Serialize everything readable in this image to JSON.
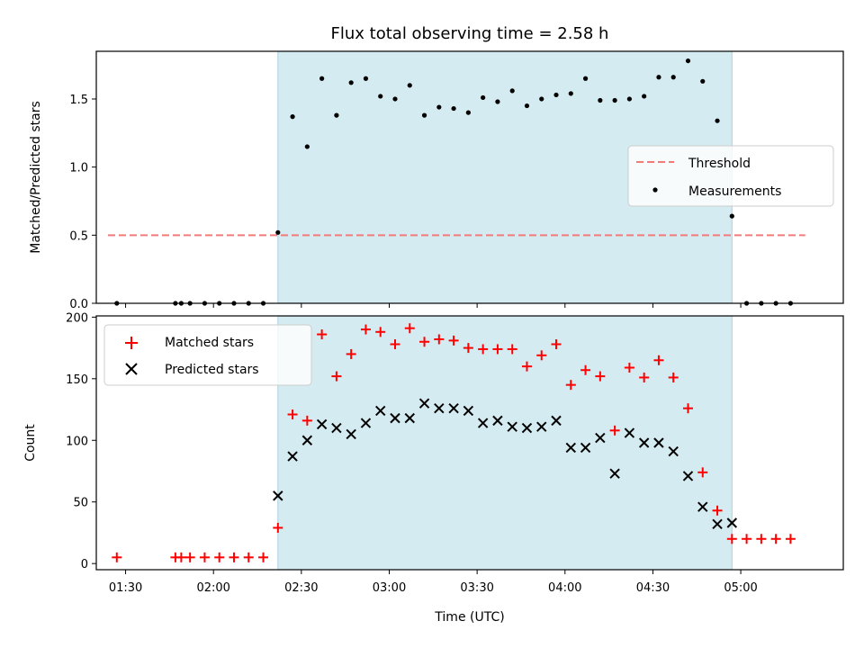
{
  "chart_data": [
    {
      "type": "scatter",
      "title": "Flux total observing time = 2.58 h",
      "ylabel": "Matched/Predicted stars",
      "xlabel": "",
      "ylim": [
        0,
        1.85
      ],
      "xlim": [
        "01:20",
        "05:35"
      ],
      "yticks": [
        0.0,
        0.5,
        1.0,
        1.5
      ],
      "ytick_labels": [
        "0.0",
        "0.5",
        "1.0",
        "1.5"
      ],
      "shaded_interval": [
        "02:22",
        "04:57"
      ],
      "shade_color": "#d4ebf1",
      "grid": false,
      "legend_position": "center-right",
      "threshold": {
        "name": "Threshold",
        "y": 0.5,
        "x_range": [
          "01:24",
          "05:22"
        ],
        "color": "#f47a7a",
        "style": "dashed"
      },
      "series": [
        {
          "name": "Measurements",
          "color": "#000000",
          "marker": "dot",
          "x": [
            "01:27",
            "01:47",
            "01:49",
            "01:52",
            "01:57",
            "02:02",
            "02:07",
            "02:12",
            "02:17",
            "02:22",
            "02:27",
            "02:32",
            "02:37",
            "02:42",
            "02:47",
            "02:52",
            "02:57",
            "03:02",
            "03:07",
            "03:12",
            "03:17",
            "03:22",
            "03:27",
            "03:32",
            "03:37",
            "03:42",
            "03:47",
            "03:52",
            "03:57",
            "04:02",
            "04:07",
            "04:12",
            "04:17",
            "04:22",
            "04:27",
            "04:32",
            "04:37",
            "04:42",
            "04:47",
            "04:52",
            "04:57",
            "05:02",
            "05:07",
            "05:12",
            "05:17"
          ],
          "y": [
            0.0,
            0.0,
            0.0,
            0.0,
            0.0,
            0.0,
            0.0,
            0.0,
            0.0,
            0.52,
            1.37,
            1.15,
            1.65,
            1.38,
            1.62,
            1.65,
            1.52,
            1.5,
            1.6,
            1.38,
            1.44,
            1.43,
            1.4,
            1.51,
            1.48,
            1.56,
            1.45,
            1.5,
            1.53,
            1.54,
            1.65,
            1.49,
            1.49,
            1.5,
            1.52,
            1.66,
            1.66,
            1.78,
            1.63,
            1.34,
            0.64,
            0.0,
            0.0,
            0.0,
            0.0
          ]
        }
      ]
    },
    {
      "type": "scatter",
      "title": "",
      "ylabel": "Count",
      "xlabel": "Time (UTC)",
      "ylim": [
        -5,
        201
      ],
      "xlim": [
        "01:20",
        "05:35"
      ],
      "yticks": [
        0,
        50,
        100,
        150,
        200
      ],
      "ytick_labels": [
        "0",
        "50",
        "100",
        "150",
        "200"
      ],
      "xticks": [
        "01:30",
        "02:00",
        "02:30",
        "03:00",
        "03:30",
        "04:00",
        "04:30",
        "05:00"
      ],
      "shaded_interval": [
        "02:22",
        "04:57"
      ],
      "shade_color": "#d4ebf1",
      "grid": false,
      "legend_position": "top-left",
      "series": [
        {
          "name": "Matched stars",
          "color": "#ff0000",
          "marker": "plus",
          "x": [
            "01:27",
            "01:47",
            "01:49",
            "01:52",
            "01:57",
            "02:02",
            "02:07",
            "02:12",
            "02:17",
            "02:22",
            "02:27",
            "02:32",
            "02:37",
            "02:42",
            "02:47",
            "02:52",
            "02:57",
            "03:02",
            "03:07",
            "03:12",
            "03:17",
            "03:22",
            "03:27",
            "03:32",
            "03:37",
            "03:42",
            "03:47",
            "03:52",
            "03:57",
            "04:02",
            "04:07",
            "04:12",
            "04:17",
            "04:22",
            "04:27",
            "04:32",
            "04:37",
            "04:42",
            "04:47",
            "04:52",
            "04:57",
            "05:02",
            "05:07",
            "05:12",
            "05:17"
          ],
          "y": [
            5,
            5,
            5,
            5,
            5,
            5,
            5,
            5,
            5,
            29,
            121,
            116,
            186,
            152,
            170,
            190,
            188,
            178,
            191,
            180,
            182,
            181,
            175,
            174,
            174,
            174,
            160,
            169,
            178,
            145,
            157,
            152,
            108,
            159,
            151,
            165,
            151,
            126,
            74,
            43,
            20,
            20,
            20,
            20,
            20
          ]
        },
        {
          "name": "Predicted stars",
          "color": "#000000",
          "marker": "x",
          "x": [
            "02:22",
            "02:27",
            "02:32",
            "02:37",
            "02:42",
            "02:47",
            "02:52",
            "02:57",
            "03:02",
            "03:07",
            "03:12",
            "03:17",
            "03:22",
            "03:27",
            "03:32",
            "03:37",
            "03:42",
            "03:47",
            "03:52",
            "03:57",
            "04:02",
            "04:07",
            "04:12",
            "04:17",
            "04:22",
            "04:27",
            "04:32",
            "04:37",
            "04:42",
            "04:47",
            "04:52",
            "04:57"
          ],
          "y": [
            55,
            87,
            100,
            113,
            110,
            105,
            114,
            124,
            118,
            118,
            130,
            126,
            126,
            124,
            114,
            116,
            111,
            110,
            111,
            116,
            94,
            94,
            102,
            73,
            106,
            98,
            98,
            91,
            71,
            46,
            32,
            33
          ]
        }
      ]
    }
  ]
}
